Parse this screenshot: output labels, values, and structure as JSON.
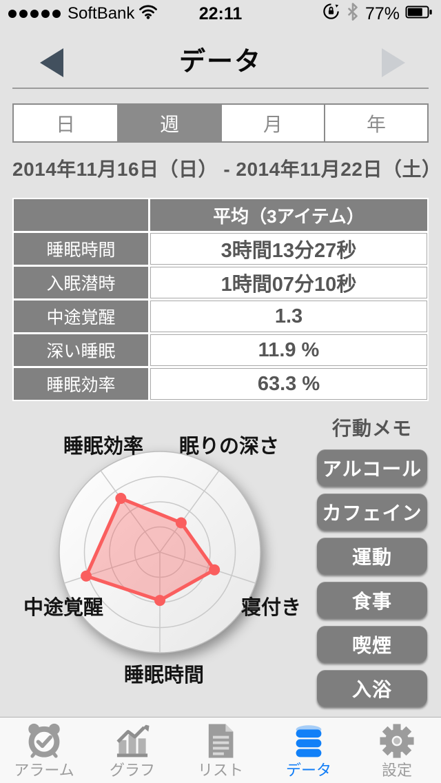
{
  "status_bar": {
    "carrier": "SoftBank",
    "signal_dots": 5,
    "time": "22:11",
    "battery_percent": "77%"
  },
  "nav": {
    "title": "データ"
  },
  "segmented": {
    "options": [
      {
        "label": "日",
        "selected": false
      },
      {
        "label": "週",
        "selected": true
      },
      {
        "label": "月",
        "selected": false
      },
      {
        "label": "年",
        "selected": false
      }
    ]
  },
  "period": {
    "range": "2014年11月16日（日） - 2014年11月22日（土）"
  },
  "table": {
    "header": "平均（3アイテム）",
    "rows": [
      {
        "label": "睡眠時間",
        "value": "3時間13分27秒"
      },
      {
        "label": "入眠潜時",
        "value": "1時間07分10秒"
      },
      {
        "label": "中途覚醒",
        "value": "1.3"
      },
      {
        "label": "深い睡眠",
        "value": "11.9 %"
      },
      {
        "label": "睡眠効率",
        "value": "63.3 %"
      }
    ]
  },
  "chart_data": {
    "type": "radar",
    "value_range": [
      0,
      1
    ],
    "rings": [
      0.25,
      0.5,
      0.75,
      1.0
    ],
    "axes": [
      {
        "label": "眠りの深さ",
        "angle_deg": -54,
        "value": 0.36
      },
      {
        "label": "寝付き",
        "angle_deg": 18,
        "value": 0.57
      },
      {
        "label": "睡眠時間",
        "angle_deg": 90,
        "value": 0.48
      },
      {
        "label": "中途覚醒",
        "angle_deg": 162,
        "value": 0.77
      },
      {
        "label": "睡眠効率",
        "angle_deg": 234,
        "value": 0.66
      }
    ],
    "polygon_color": "#fa5e5e",
    "fill_color": "rgba(250,94,94,0.35)",
    "grid_color": "#c9c9c9"
  },
  "memo": {
    "title": "行動メモ",
    "buttons": [
      {
        "label": "アルコール"
      },
      {
        "label": "カフェイン"
      },
      {
        "label": "運動"
      },
      {
        "label": "食事"
      },
      {
        "label": "喫煙"
      },
      {
        "label": "入浴"
      }
    ]
  },
  "tab_bar": {
    "items": [
      {
        "label": "アラーム",
        "icon": "alarm-clock-icon",
        "active": false
      },
      {
        "label": "グラフ",
        "icon": "bar-chart-icon",
        "active": false
      },
      {
        "label": "リスト",
        "icon": "list-document-icon",
        "active": false
      },
      {
        "label": "データ",
        "icon": "database-icon",
        "active": true
      },
      {
        "label": "設定",
        "icon": "gear-icon",
        "active": false
      }
    ]
  },
  "colors": {
    "background": "#e3e3e3",
    "cell_gray": "#818181",
    "segment_gray": "#8b8b8b",
    "button_gray": "#7e7e7e",
    "accent_blue": "#117df6",
    "radar_red": "#fa5e5e"
  }
}
